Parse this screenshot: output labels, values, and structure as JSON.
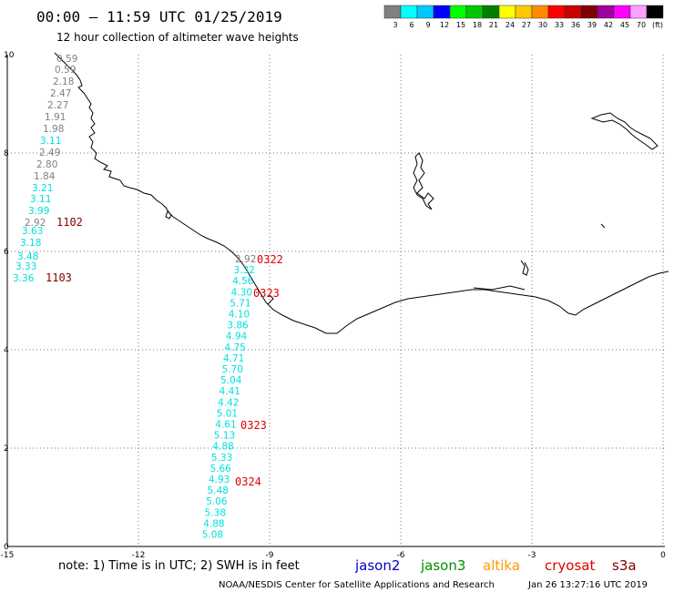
{
  "header": {
    "title": "00:00 – 11:59 UTC 01/25/2019",
    "subtitle": "12 hour collection of altimeter wave heights"
  },
  "color_scale": {
    "colors": [
      "#808080",
      "#00ffff",
      "#00c8ff",
      "#0000ff",
      "#00ff00",
      "#00c800",
      "#008000",
      "#ffff00",
      "#ffc800",
      "#ff8c00",
      "#ff0000",
      "#c80000",
      "#800000",
      "#a000a0",
      "#ff00ff",
      "#ffa0ff",
      "#000000"
    ],
    "labels": [
      "3",
      "6",
      "9",
      "12",
      "15",
      "18",
      "21",
      "24",
      "27",
      "30",
      "33",
      "36",
      "39",
      "42",
      "45",
      "70",
      "(ft)"
    ]
  },
  "axes": {
    "x_ticks": [
      "-15",
      "-12",
      "-9",
      "-6",
      "-3",
      "0"
    ],
    "y_ticks": [
      "0",
      "2",
      "4",
      "6",
      "8",
      "10"
    ]
  },
  "track1": {
    "values": [
      {
        "v": "0.59",
        "c": "#808080"
      },
      {
        "v": "0.59",
        "c": "#808080"
      },
      {
        "v": "2.18",
        "c": "#808080"
      },
      {
        "v": "2.47",
        "c": "#808080"
      },
      {
        "v": "2.27",
        "c": "#808080"
      },
      {
        "v": "1.91",
        "c": "#808080"
      },
      {
        "v": "1.98",
        "c": "#808080"
      },
      {
        "v": "3.11",
        "c": "#00e0e0"
      },
      {
        "v": "2.49",
        "c": "#808080"
      },
      {
        "v": "2.80",
        "c": "#808080"
      },
      {
        "v": "1.84",
        "c": "#808080"
      },
      {
        "v": "3.21",
        "c": "#00e0e0"
      },
      {
        "v": "3.11",
        "c": "#00e0e0"
      },
      {
        "v": "3.99",
        "c": "#00e0e0"
      },
      {
        "v": "2.92",
        "c": "#808080"
      },
      {
        "v": "3.63",
        "c": "#00e0e0"
      },
      {
        "v": "3.18",
        "c": "#00e0e0"
      },
      {
        "v": "3.48",
        "c": "#00e0e0"
      },
      {
        "v": "3.33",
        "c": "#00e0e0"
      },
      {
        "v": "3.36",
        "c": "#00e0e0"
      }
    ],
    "cycles": [
      {
        "label": "1102",
        "c": "#800000"
      },
      {
        "label": "1103",
        "c": "#800000"
      }
    ]
  },
  "track2": {
    "values": [
      {
        "v": "2.92",
        "c": "#808080"
      },
      {
        "v": "3.32",
        "c": "#00e0e0"
      },
      {
        "v": "4.56",
        "c": "#00e0e0"
      },
      {
        "v": "4.30",
        "c": "#00e0e0"
      },
      {
        "v": "5.71",
        "c": "#00e0e0"
      },
      {
        "v": "4.10",
        "c": "#00e0e0"
      },
      {
        "v": "3.86",
        "c": "#00e0e0"
      },
      {
        "v": "4.94",
        "c": "#00e0e0"
      },
      {
        "v": "4.75",
        "c": "#00e0e0"
      },
      {
        "v": "4.71",
        "c": "#00e0e0"
      },
      {
        "v": "5.70",
        "c": "#00e0e0"
      },
      {
        "v": "5.04",
        "c": "#00e0e0"
      },
      {
        "v": "4.41",
        "c": "#00e0e0"
      },
      {
        "v": "4.42",
        "c": "#00e0e0"
      },
      {
        "v": "5.01",
        "c": "#00e0e0"
      },
      {
        "v": "4.61",
        "c": "#00e0e0"
      },
      {
        "v": "5.13",
        "c": "#00e0e0"
      },
      {
        "v": "4.88",
        "c": "#00e0e0"
      },
      {
        "v": "5.33",
        "c": "#00e0e0"
      },
      {
        "v": "5.66",
        "c": "#00e0e0"
      },
      {
        "v": "4.93",
        "c": "#00e0e0"
      },
      {
        "v": "5.48",
        "c": "#00e0e0"
      },
      {
        "v": "5.06",
        "c": "#00e0e0"
      },
      {
        "v": "5.38",
        "c": "#00e0e0"
      },
      {
        "v": "4.88",
        "c": "#00e0e0"
      },
      {
        "v": "5.08",
        "c": "#00e0e0"
      }
    ],
    "cycles": [
      {
        "label": "0322",
        "c": "#e00000"
      },
      {
        "label": "0323",
        "c": "#e00000"
      },
      {
        "label": "0323",
        "c": "#e00000"
      },
      {
        "label": "0324",
        "c": "#e00000"
      }
    ]
  },
  "footer": {
    "note": "note:  1) Time is in UTC;  2) SWH is in feet",
    "missions": [
      {
        "name": "jason2",
        "color": "#0000cc"
      },
      {
        "name": "jason3",
        "color": "#009000"
      },
      {
        "name": "altika",
        "color": "#ff9900"
      },
      {
        "name": "cryosat",
        "color": "#e00000"
      },
      {
        "name": "s3a",
        "color": "#800000"
      }
    ],
    "credit": "NOAA/NESDIS Center for Satellite Applications and Research",
    "timestamp": "Jan 26 13:27:16 UTC 2019"
  }
}
